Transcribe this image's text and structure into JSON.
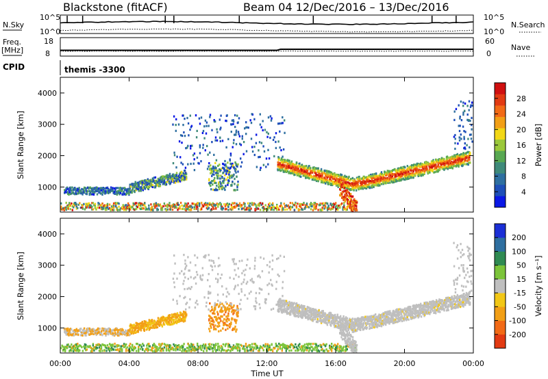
{
  "header": {
    "radar_title": "Blackstone (fitACF)",
    "beam_date": "Beam 04  12/Dec/2016 – 13/Dec/2016"
  },
  "strip": {
    "nsky_label": "N.Sky",
    "nsearch_label": "N.Search",
    "nsky_ticks": [
      "10^5",
      "10^0"
    ],
    "nsearch_ticks": [
      "10^5",
      "10^0"
    ],
    "freq_label": "Freq.",
    "freq_unit": "[MHz]",
    "freq_ticks": [
      "18",
      "8"
    ],
    "nave_label": "Nave",
    "nave_ticks": [
      "60",
      "0"
    ],
    "cpid_label": "CPID",
    "cpid_value": "themis -3300"
  },
  "chart_data": [
    {
      "type": "heatmap",
      "name_label": "Power [dB]",
      "ylabel": "Slant Range [km]",
      "ylim": [
        200,
        4500
      ],
      "yticks": [
        "1000",
        "2000",
        "3000",
        "4000"
      ],
      "colorbar_ticks": [
        "4",
        "8",
        "12",
        "16",
        "20",
        "24",
        "28"
      ],
      "colors": [
        "#0b18e6",
        "#1e4fb8",
        "#2e6fa0",
        "#3f8a7a",
        "#58a852",
        "#9bc83a",
        "#f2d716",
        "#f29f16",
        "#f26a16",
        "#e23a12",
        "#d01010"
      ]
    },
    {
      "type": "heatmap",
      "name_label": "Velocity [m s⁻¹]",
      "ylabel": "Slant Range [km]",
      "ylim": [
        200,
        4500
      ],
      "yticks": [
        "1000",
        "2000",
        "3000",
        "4000"
      ],
      "colorbar_ticks": [
        "200",
        "100",
        "50",
        "15",
        "-15",
        "-50",
        "-100",
        "-200"
      ],
      "colors": [
        "#1b2fd6",
        "#2e6fa0",
        "#2f8a52",
        "#7cc43a",
        "#bfbfbf",
        "#f2c716",
        "#f29f16",
        "#f26a16",
        "#e23a12"
      ]
    }
  ],
  "xaxis": {
    "label": "Time UT",
    "ticks": [
      "00:00",
      "04:00",
      "08:00",
      "12:00",
      "16:00",
      "20:00",
      "00:00"
    ]
  }
}
